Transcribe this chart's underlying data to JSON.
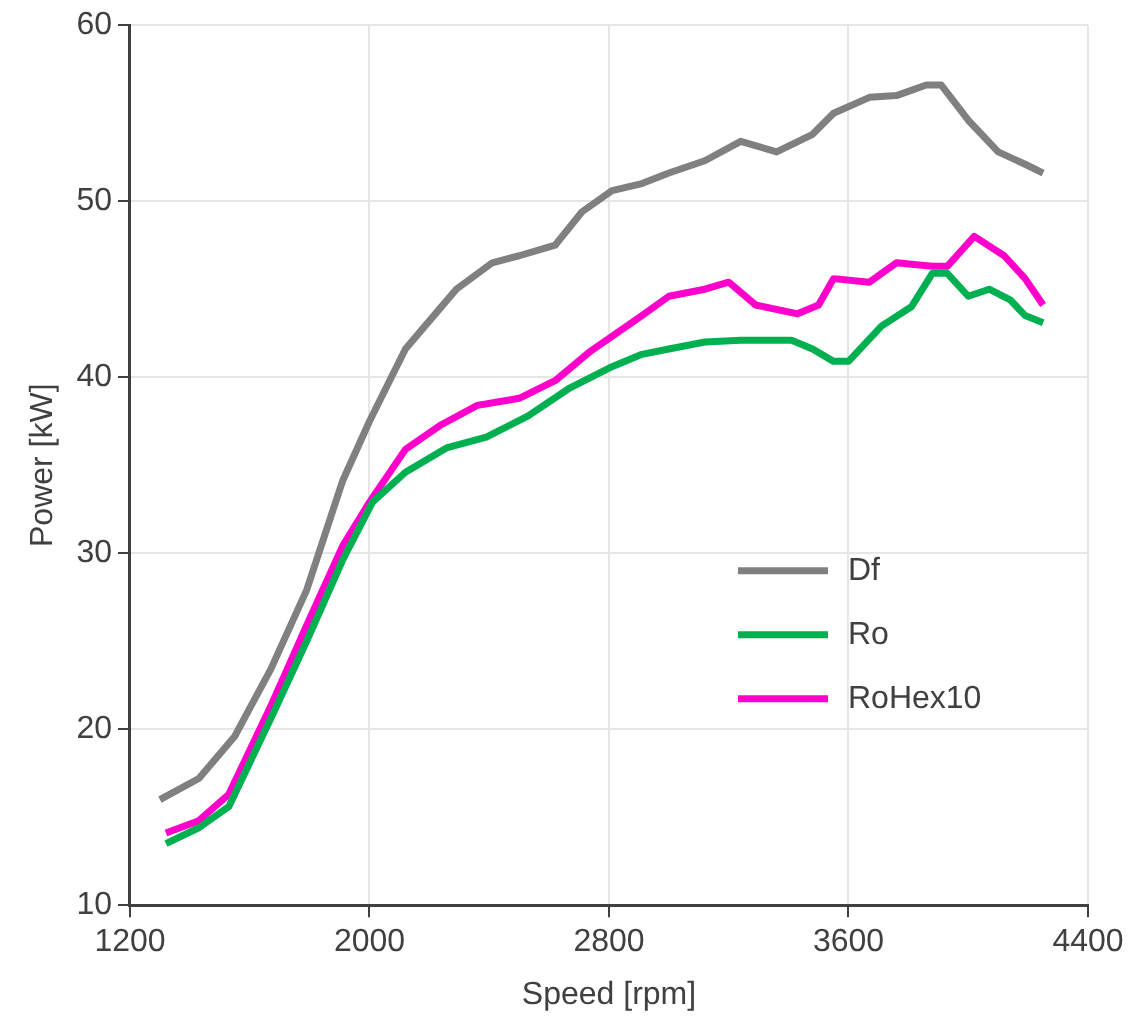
{
  "chart_data": {
    "type": "line",
    "xlabel": "Speed [rpm]",
    "ylabel": "Power [kW]",
    "xlim": [
      1200,
      4400
    ],
    "xticks": [
      1200,
      2000,
      2800,
      3600,
      4400
    ],
    "ylim": [
      10,
      60
    ],
    "yticks": [
      10,
      20,
      30,
      40,
      50,
      60
    ],
    "grid": true,
    "legend": "right",
    "marker": "none",
    "line_style": "solid",
    "series": [
      {
        "name": "Df",
        "color": "#808080",
        "x": [
          1300,
          1430,
          1550,
          1670,
          1790,
          1910,
          2000,
          2120,
          2210,
          2290,
          2410,
          2500,
          2620,
          2710,
          2810,
          2910,
          3000,
          3120,
          3240,
          3360,
          3480,
          3550,
          3670,
          3760,
          3860,
          3910,
          4000,
          4100,
          4190,
          4250
        ],
        "values": [
          16.0,
          17.2,
          19.6,
          23.4,
          27.9,
          34.1,
          37.5,
          41.6,
          43.4,
          45.0,
          46.5,
          46.9,
          47.5,
          49.4,
          50.6,
          51.0,
          51.6,
          52.3,
          53.4,
          52.8,
          53.8,
          55.0,
          55.9,
          56.0,
          56.6,
          56.6,
          54.6,
          52.8,
          52.1,
          51.6
        ]
      },
      {
        "name": "Ro",
        "color": "#00b050",
        "x": [
          1320,
          1430,
          1530,
          1670,
          1790,
          1910,
          2010,
          2120,
          2260,
          2390,
          2530,
          2670,
          2810,
          2910,
          3000,
          3120,
          3240,
          3410,
          3480,
          3550,
          3600,
          3710,
          3810,
          3880,
          3930,
          4000,
          4070,
          4140,
          4190,
          4250
        ],
        "values": [
          13.5,
          14.4,
          15.6,
          20.6,
          25.0,
          29.6,
          32.9,
          34.6,
          36.0,
          36.6,
          37.8,
          39.4,
          40.6,
          41.3,
          41.6,
          42.0,
          42.1,
          42.1,
          41.6,
          40.9,
          40.9,
          42.9,
          44.0,
          45.9,
          45.9,
          44.6,
          45.0,
          44.4,
          43.5,
          43.1
        ]
      },
      {
        "name": "RoHex10",
        "color": "#ff00cc",
        "x": [
          1320,
          1430,
          1530,
          1670,
          1790,
          1910,
          2000,
          2120,
          2240,
          2360,
          2500,
          2620,
          2740,
          2910,
          3000,
          3120,
          3200,
          3290,
          3430,
          3500,
          3550,
          3670,
          3760,
          3880,
          3930,
          4020,
          4120,
          4190,
          4250
        ],
        "values": [
          14.1,
          14.8,
          16.3,
          21.3,
          25.9,
          30.4,
          32.9,
          35.9,
          37.3,
          38.4,
          38.8,
          39.8,
          41.5,
          43.5,
          44.6,
          45.0,
          45.4,
          44.1,
          43.6,
          44.1,
          45.6,
          45.4,
          46.5,
          46.3,
          46.3,
          48.0,
          46.9,
          45.6,
          44.1
        ]
      }
    ]
  }
}
